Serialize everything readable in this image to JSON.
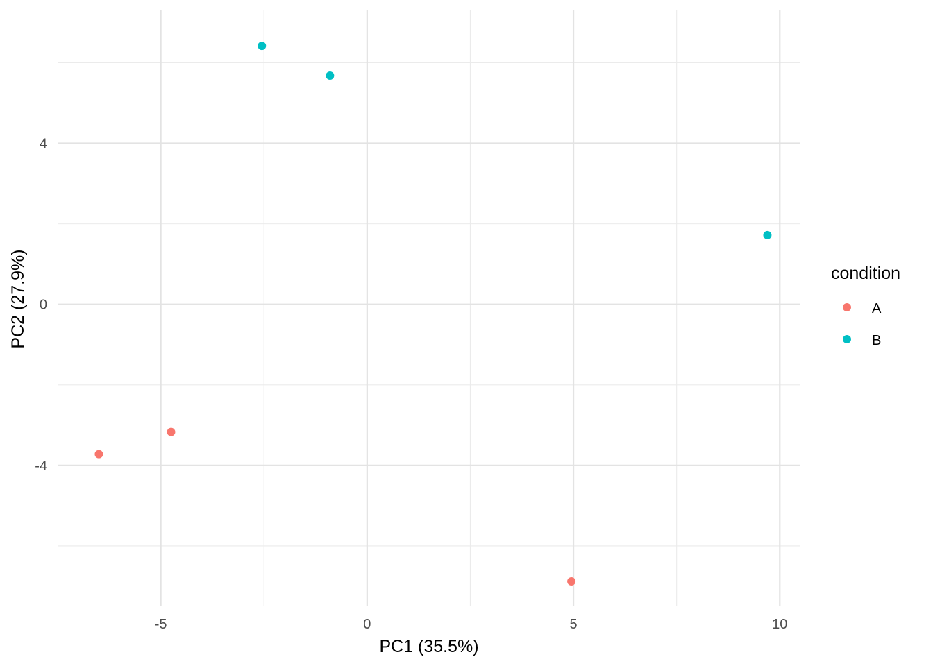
{
  "chart_data": {
    "type": "scatter",
    "title": "",
    "xlabel": "PC1 (35.5%)",
    "ylabel": "PC2 (27.9%)",
    "xlim": [
      -7.5,
      10.5
    ],
    "ylim": [
      -7.5,
      7.3
    ],
    "x_ticks": [
      -5,
      0,
      5,
      10
    ],
    "x_tick_labels": [
      "-5",
      "0",
      "5",
      "10"
    ],
    "x_minor_ticks": [
      -2.5,
      2.5,
      7.5
    ],
    "y_ticks": [
      -4,
      0,
      4
    ],
    "y_tick_labels": [
      "-4",
      "0",
      "4"
    ],
    "y_minor_ticks": [
      -6,
      -2,
      2,
      6
    ],
    "grid": true,
    "legend": {
      "title": "condition",
      "placement": "right",
      "entries": [
        {
          "label": "A",
          "color": "#F8766D"
        },
        {
          "label": "B",
          "color": "#00BFC4"
        }
      ]
    },
    "series": [
      {
        "name": "A",
        "color": "#F8766D",
        "points": [
          {
            "x": -6.5,
            "y": -3.72
          },
          {
            "x": -4.75,
            "y": -3.17
          },
          {
            "x": 4.95,
            "y": -6.88
          }
        ]
      },
      {
        "name": "B",
        "color": "#00BFC4",
        "points": [
          {
            "x": -2.55,
            "y": 6.42
          },
          {
            "x": -0.9,
            "y": 5.68
          },
          {
            "x": 9.7,
            "y": 1.72
          }
        ]
      }
    ]
  }
}
